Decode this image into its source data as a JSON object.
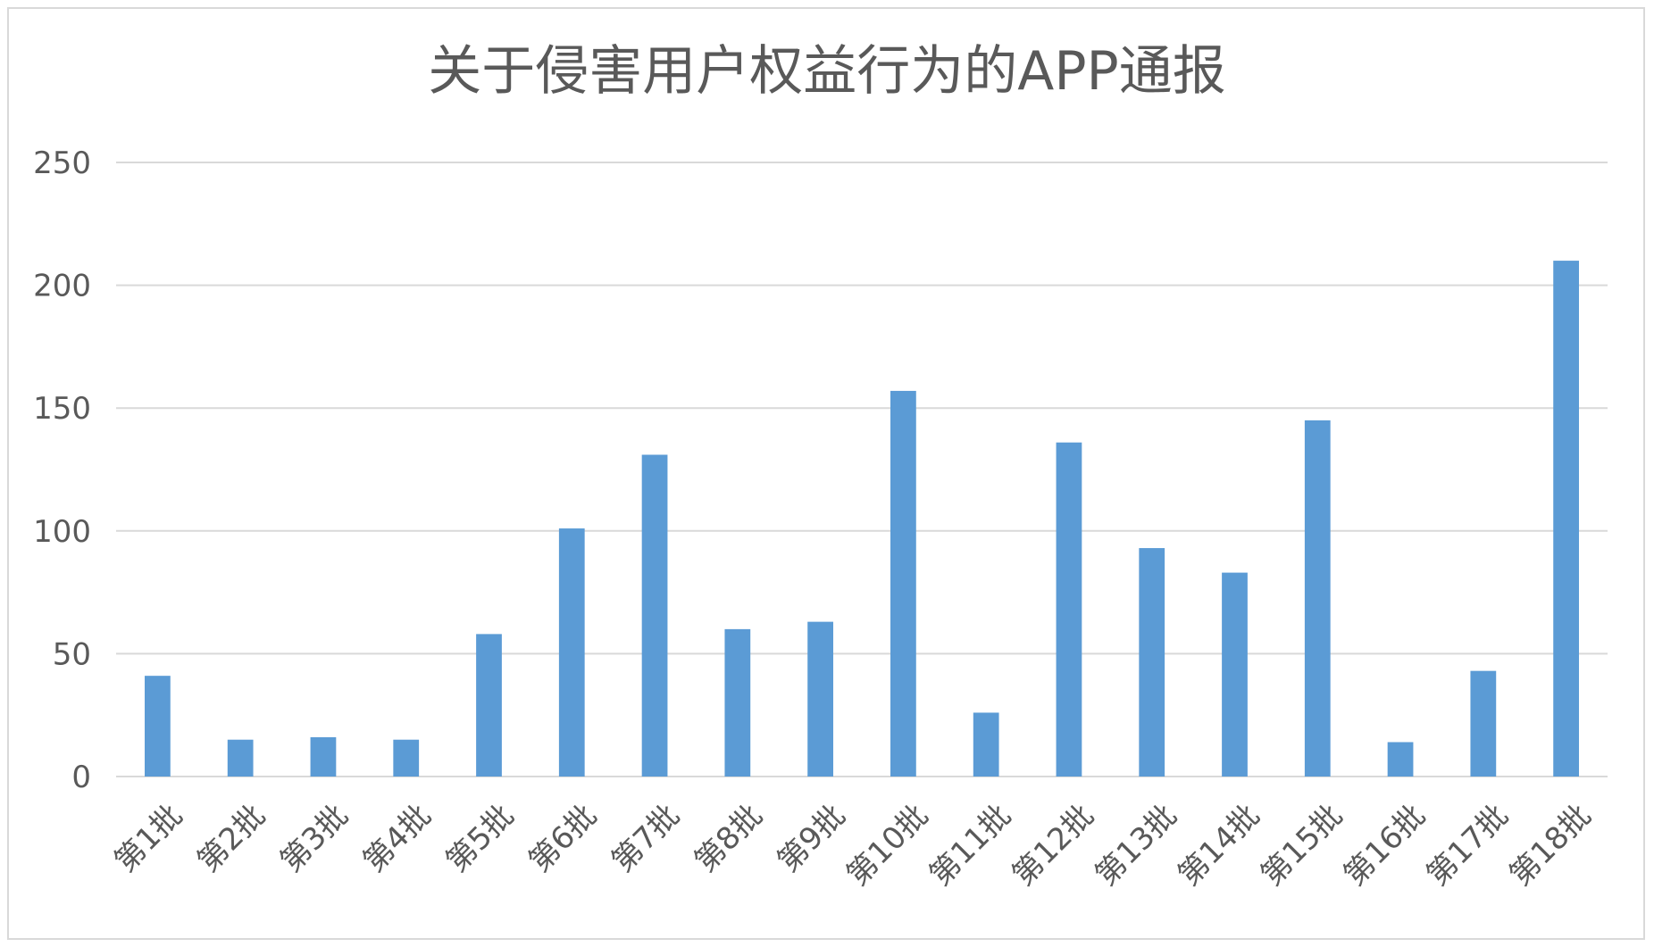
{
  "chart_data": {
    "type": "bar",
    "title": "关于侵害用户权益行为的APP通报",
    "xlabel": "",
    "ylabel": "",
    "categories": [
      "第1批",
      "第2批",
      "第3批",
      "第4批",
      "第5批",
      "第6批",
      "第7批",
      "第8批",
      "第9批",
      "第10批",
      "第11批",
      "第12批",
      "第13批",
      "第14批",
      "第15批",
      "第16批",
      "第17批",
      "第18批"
    ],
    "values": [
      41,
      15,
      16,
      15,
      58,
      101,
      131,
      60,
      63,
      157,
      26,
      136,
      93,
      83,
      145,
      14,
      43,
      210
    ],
    "ylim": [
      0,
      250
    ],
    "yticks": [
      0,
      50,
      100,
      150,
      200,
      250
    ],
    "grid": true,
    "legend": "none",
    "bar_color": "#5b9bd5",
    "gridline_color": "#d9d9d9",
    "text_color": "#595959"
  }
}
